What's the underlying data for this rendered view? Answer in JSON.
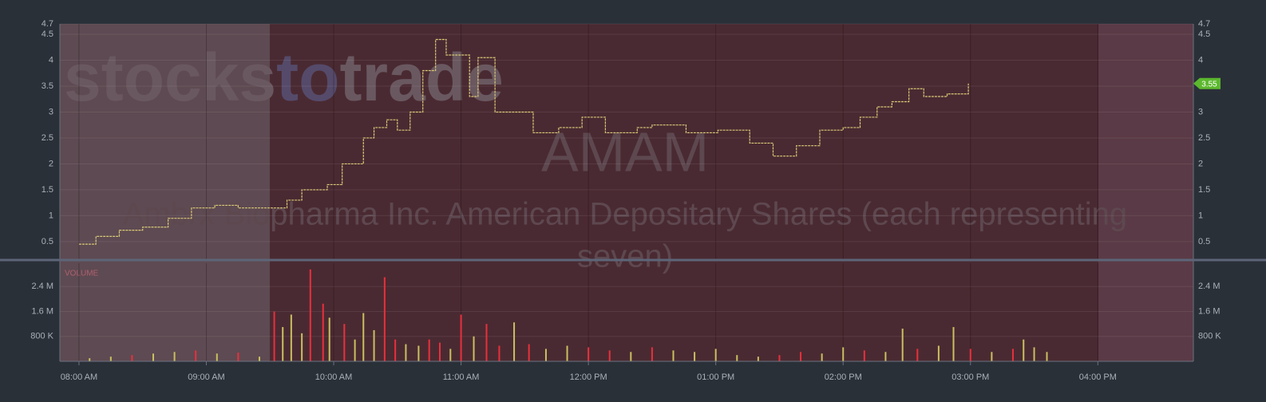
{
  "chart_data": [
    {
      "type": "line",
      "title": "AMAM",
      "subtitle": [
        "Ambrx Biopharma Inc. American Depositary Shares (each representing",
        "seven)"
      ],
      "watermark": [
        "stocks",
        "to",
        "trade"
      ],
      "x": [
        480,
        488,
        499,
        510,
        522,
        533,
        544,
        555,
        570,
        578,
        585,
        597,
        604,
        614,
        619,
        625,
        630,
        636,
        642,
        648,
        653,
        664,
        668,
        676,
        687,
        694,
        706,
        717,
        728,
        743,
        750,
        766,
        781,
        796,
        807,
        818,
        829,
        840,
        848,
        856,
        863,
        871,
        878,
        889,
        899
      ],
      "series": [
        {
          "name": "AMAM",
          "color": "#d8c878",
          "values": [
            0.45,
            0.6,
            0.72,
            0.78,
            0.95,
            1.15,
            1.2,
            1.15,
            1.15,
            1.3,
            1.5,
            1.6,
            2.0,
            2.5,
            2.7,
            2.85,
            2.65,
            3.0,
            3.8,
            4.4,
            4.1,
            3.3,
            4.05,
            3.0,
            3.0,
            2.6,
            2.7,
            2.9,
            2.6,
            2.7,
            2.75,
            2.6,
            2.65,
            2.4,
            2.15,
            2.35,
            2.65,
            2.7,
            2.9,
            3.1,
            3.2,
            3.45,
            3.3,
            3.35,
            3.55
          ]
        }
      ],
      "last_value": 3.55,
      "xlim": [
        471,
        1005
      ],
      "ylim": [
        0.16,
        4.7
      ],
      "yticks": [
        0.5,
        1,
        1.5,
        2,
        2.5,
        3,
        3.5,
        4,
        4.5,
        4.7
      ],
      "grid": true
    },
    {
      "type": "bar",
      "title": "VOLUME",
      "x": [
        485,
        495,
        505,
        515,
        525,
        535,
        545,
        555,
        565,
        572,
        576,
        580,
        585,
        589,
        595,
        598,
        605,
        610,
        614,
        619,
        624,
        629,
        634,
        640,
        645,
        650,
        655,
        660,
        666,
        672,
        678,
        685,
        692,
        700,
        710,
        720,
        730,
        740,
        750,
        760,
        770,
        780,
        790,
        800,
        810,
        820,
        830,
        840,
        850,
        860,
        868,
        875,
        885,
        892,
        900,
        910,
        920,
        925,
        930,
        936
      ],
      "values": [
        100000,
        150000,
        200000,
        250000,
        300000,
        350000,
        250000,
        280000,
        150000,
        1600000,
        1100000,
        1500000,
        900000,
        2950000,
        1850000,
        1400000,
        1200000,
        700000,
        1550000,
        1000000,
        2700000,
        700000,
        550000,
        500000,
        700000,
        600000,
        400000,
        1500000,
        800000,
        1200000,
        500000,
        1250000,
        550000,
        400000,
        500000,
        450000,
        350000,
        300000,
        450000,
        350000,
        300000,
        400000,
        200000,
        150000,
        200000,
        300000,
        250000,
        450000,
        350000,
        300000,
        1050000,
        400000,
        500000,
        1100000,
        400000,
        300000,
        400000,
        700000,
        450000,
        300000
      ],
      "colors": [
        "#c8c060",
        "#c8c060",
        "#e8303c",
        "#c8c060",
        "#c8c060",
        "#e8303c",
        "#c8c060",
        "#e8303c",
        "#c8c060",
        "#e8303c",
        "#c8c060",
        "#c8c060",
        "#c8c060",
        "#e8303c",
        "#e8303c",
        "#c8c060",
        "#e8303c",
        "#c8c060",
        "#c8c060",
        "#c8c060",
        "#e8303c",
        "#e8303c",
        "#c8c060",
        "#c8c060",
        "#e8303c",
        "#e8303c",
        "#c8c060",
        "#e8303c",
        "#c8c060",
        "#e8303c",
        "#e8303c",
        "#c8c060",
        "#e8303c",
        "#c8c060",
        "#c8c060",
        "#e8303c",
        "#e8303c",
        "#c8c060",
        "#e8303c",
        "#c8c060",
        "#c8c060",
        "#c8c060",
        "#c8c060",
        "#c8c060",
        "#e8303c",
        "#e8303c",
        "#c8c060",
        "#c8c060",
        "#e8303c",
        "#c8c060",
        "#c8c060",
        "#e8303c",
        "#c8c060",
        "#c8c060",
        "#e8303c",
        "#c8c060",
        "#e8303c",
        "#c8c060",
        "#c8c060",
        "#c8c060"
      ],
      "xlim": [
        471,
        1005
      ],
      "xticks": [
        {
          "value": 480,
          "label": "08:00 AM"
        },
        {
          "value": 540,
          "label": "09:00 AM"
        },
        {
          "value": 600,
          "label": "10:00 AM"
        },
        {
          "value": 660,
          "label": "11:00 AM"
        },
        {
          "value": 720,
          "label": "12:00 PM"
        },
        {
          "value": 780,
          "label": "01:00 PM"
        },
        {
          "value": 840,
          "label": "02:00 PM"
        },
        {
          "value": 900,
          "label": "03:00 PM"
        },
        {
          "value": 960,
          "label": "04:00 PM"
        }
      ],
      "ylim": [
        0,
        3150000
      ],
      "yticks": [
        {
          "value": 800000,
          "label": "800 K"
        },
        {
          "value": 1600000,
          "label": "1.6 M"
        },
        {
          "value": 2400000,
          "label": "2.4 M"
        }
      ],
      "grid": true
    }
  ]
}
